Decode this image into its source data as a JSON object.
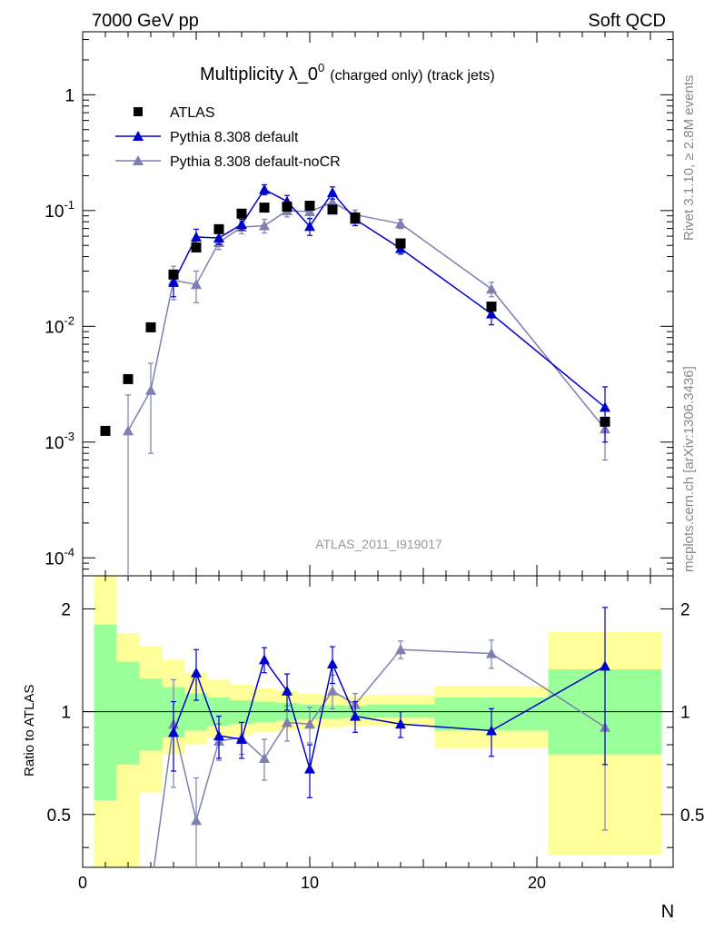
{
  "header": {
    "left": "7000 GeV pp",
    "right": "Soft QCD"
  },
  "title": {
    "main": "Multiplicity λ_0",
    "sup": "0",
    "small": "(charged only) (track jets)"
  },
  "side_labels": {
    "top": "Rivet 3.1.10, ≥ 2.8M events",
    "bottom": "mcplots.cern.ch [arXiv:1306.3436]"
  },
  "watermark": "ATLAS_2011_I919017",
  "ratio_ylabel": "Ratio to ATLAS",
  "xlabel": "N",
  "colors": {
    "atlas": "#000000",
    "pythia_default": "#0000cc",
    "pythia_nocr": "#7f7fb2",
    "band_inner": "#99ff99",
    "band_outer": "#ffff99"
  },
  "chart_data": {
    "type": "scatter",
    "xlim": [
      0,
      26
    ],
    "ylim_main": [
      7e-05,
      3.5
    ],
    "ylim_ratio": [
      0.35,
      2.5
    ],
    "log_y_main": true,
    "log_y_ratio": true,
    "x_ticks": [
      "0",
      "10",
      "20"
    ],
    "y_ticks_main": [
      {
        "mant": "10",
        "exp": "-4"
      },
      {
        "mant": "10",
        "exp": "-3"
      },
      {
        "mant": "10",
        "exp": "-2"
      },
      {
        "mant": "10",
        "exp": "-1"
      },
      {
        "mant": "1",
        "exp": ""
      }
    ],
    "y_ticks_ratio": [
      "0.5",
      "1",
      "2"
    ],
    "legend": [
      "ATLAS",
      "Pythia 8.308 default",
      "Pythia 8.308 default-noCR"
    ],
    "legend_position": "top-left",
    "bins": [
      [
        0.5,
        1.5
      ],
      [
        1.5,
        2.5
      ],
      [
        2.5,
        3.5
      ],
      [
        3.5,
        4.5
      ],
      [
        4.5,
        5.5
      ],
      [
        5.5,
        6.5
      ],
      [
        6.5,
        7.5
      ],
      [
        7.5,
        8.5
      ],
      [
        8.5,
        9.5
      ],
      [
        9.5,
        10.5
      ],
      [
        10.5,
        11.5
      ],
      [
        11.5,
        12.5
      ],
      [
        12.5,
        15.5
      ],
      [
        15.5,
        20.5
      ],
      [
        20.5,
        25.5
      ]
    ],
    "band_inner": [
      [
        0.55,
        1.8
      ],
      [
        0.7,
        1.4
      ],
      [
        0.77,
        1.25
      ],
      [
        0.84,
        1.18
      ],
      [
        0.88,
        1.13
      ],
      [
        0.91,
        1.1
      ],
      [
        0.92,
        1.08
      ],
      [
        0.93,
        1.07
      ],
      [
        0.94,
        1.06
      ],
      [
        0.95,
        1.05
      ],
      [
        0.955,
        1.045
      ],
      [
        0.96,
        1.04
      ],
      [
        0.96,
        1.05
      ],
      [
        0.88,
        1.1
      ],
      [
        0.75,
        1.33
      ]
    ],
    "band_outer": [
      [
        0.3,
        2.5
      ],
      [
        0.3,
        1.7
      ],
      [
        0.58,
        1.55
      ],
      [
        0.75,
        1.42
      ],
      [
        0.8,
        1.3
      ],
      [
        0.84,
        1.24
      ],
      [
        0.85,
        1.2
      ],
      [
        0.87,
        1.17
      ],
      [
        0.88,
        1.15
      ],
      [
        0.89,
        1.13
      ],
      [
        0.9,
        1.12
      ],
      [
        0.91,
        1.11
      ],
      [
        0.91,
        1.12
      ],
      [
        0.78,
        1.19
      ],
      [
        0.38,
        1.71
      ]
    ],
    "atlas": {
      "name": "ATLAS",
      "x": [
        1,
        2,
        3,
        4,
        5,
        6,
        7,
        8,
        9,
        10,
        11,
        12,
        14,
        18,
        23
      ],
      "y": [
        0.00125,
        0.0035,
        0.0098,
        0.028,
        0.048,
        0.069,
        0.094,
        0.106,
        0.108,
        0.11,
        0.102,
        0.087,
        0.052,
        0.0148,
        0.0015
      ]
    },
    "series": [
      {
        "name": "Pythia 8.308 default",
        "x": [
          4,
          5,
          6,
          7,
          8,
          9,
          10,
          11,
          12,
          14,
          18,
          23
        ],
        "y": [
          0.024,
          0.059,
          0.058,
          0.076,
          0.152,
          0.12,
          0.073,
          0.143,
          0.084,
          0.047,
          0.0128,
          0.002
        ],
        "err": [
          0.006,
          0.01,
          0.007,
          0.008,
          0.015,
          0.015,
          0.012,
          0.017,
          0.01,
          0.005,
          0.0025,
          0.001
        ],
        "ratio": [
          0.87,
          1.3,
          0.85,
          0.83,
          1.42,
          1.15,
          0.68,
          1.38,
          0.97,
          0.92,
          0.88,
          1.36
        ],
        "ratio_err": [
          0.2,
          0.22,
          0.12,
          0.1,
          0.12,
          0.14,
          0.12,
          0.17,
          0.1,
          0.08,
          0.14,
          0.66
        ]
      },
      {
        "name": "Pythia 8.308 default-noCR",
        "x": [
          2,
          3,
          4,
          5,
          6,
          7,
          8,
          9,
          10,
          11,
          12,
          14,
          18,
          23
        ],
        "y": [
          0.00125,
          0.0028,
          0.025,
          0.023,
          0.053,
          0.072,
          0.074,
          0.1,
          0.098,
          0.118,
          0.092,
          0.077,
          0.021,
          0.0013
        ],
        "err": [
          0.0013,
          0.002,
          0.008,
          0.007,
          0.007,
          0.009,
          0.01,
          0.012,
          0.012,
          0.015,
          0.009,
          0.007,
          0.003,
          0.0006
        ],
        "ratio": [
          0.3,
          0.3,
          0.92,
          0.48,
          0.82,
          0.84,
          0.73,
          0.93,
          0.92,
          1.15,
          1.05,
          1.52,
          1.48,
          0.9
        ],
        "ratio_err": [
          0.2,
          0.2,
          0.32,
          0.16,
          0.1,
          0.09,
          0.1,
          0.11,
          0.11,
          0.13,
          0.08,
          0.09,
          0.14,
          0.45
        ]
      }
    ]
  }
}
